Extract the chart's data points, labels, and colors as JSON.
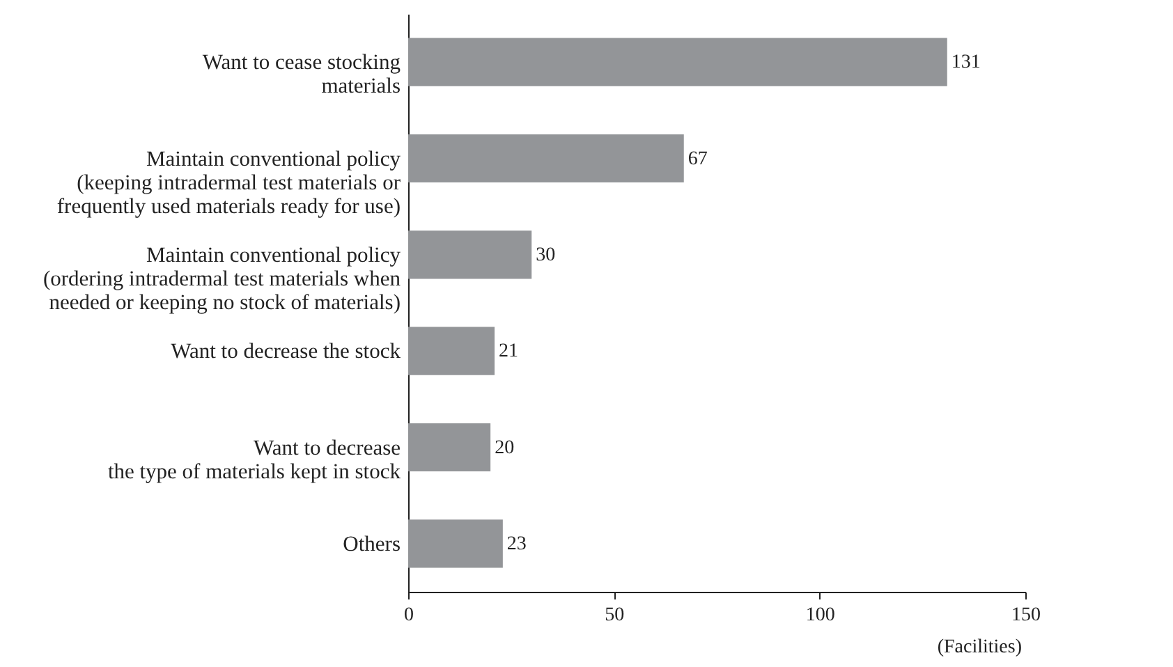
{
  "chart_data": {
    "type": "bar",
    "orientation": "horizontal",
    "categories": [
      "Want to cease stocking\nmaterials",
      "Maintain conventional policy\n(keeping intradermal test materials or\nfrequently used materials ready for use)",
      "Maintain conventional policy\n(ordering intradermal test materials when\nneeded or keeping no stock of materials)",
      "Want to decrease the stock",
      "Want to decrease\nthe type of materials kept in stock",
      "Others"
    ],
    "values": [
      131,
      67,
      30,
      21,
      20,
      23
    ],
    "color": "#939598",
    "xlabel": "(Facilities)",
    "xlim": [
      0,
      150
    ],
    "xticks": [
      0,
      50,
      100,
      150
    ],
    "data_labels": true,
    "grid": false
  }
}
